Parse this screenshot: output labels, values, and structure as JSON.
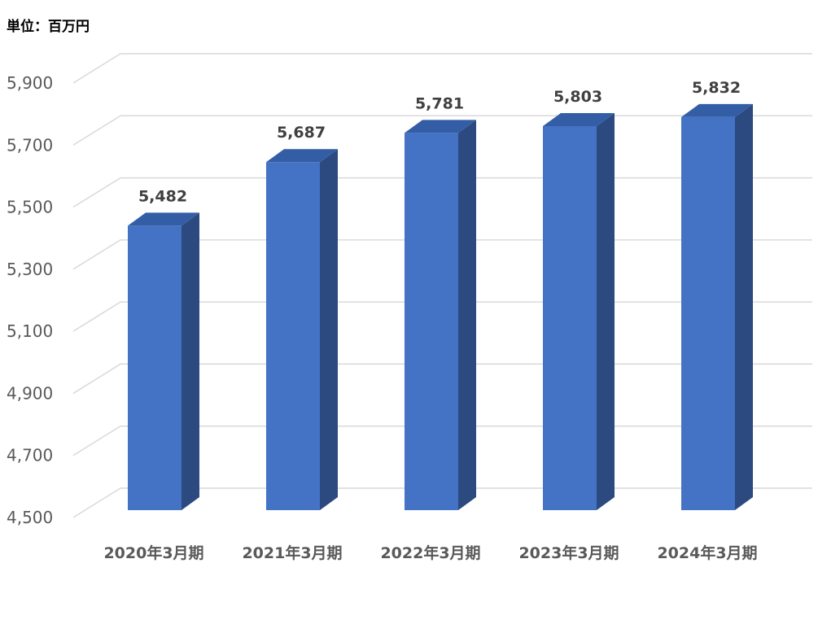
{
  "unit_label": "単位：百万円",
  "chart_data": {
    "type": "bar",
    "title": "",
    "xlabel": "",
    "ylabel": "",
    "categories": [
      "2020年3月期",
      "2021年3月期",
      "2022年3月期",
      "2023年3月期",
      "2024年3月期"
    ],
    "values": [
      5482,
      5687,
      5781,
      5803,
      5832
    ],
    "value_labels": [
      "5,482",
      "5,687",
      "5,781",
      "5,803",
      "5,832"
    ],
    "ylim": [
      4500,
      5900
    ],
    "ytick_values": [
      4500,
      4700,
      4900,
      5100,
      5300,
      5500,
      5700,
      5900
    ],
    "ytick_labels": [
      "4,500",
      "4,700",
      "4,900",
      "5,100",
      "5,300",
      "5,500",
      "5,700",
      "5,900"
    ],
    "grid": true,
    "style": "3d-column",
    "colors": {
      "front": "#4472c4",
      "side": "#2c4a80",
      "top": "#335ea6",
      "grid": "#d9d9d9"
    }
  }
}
